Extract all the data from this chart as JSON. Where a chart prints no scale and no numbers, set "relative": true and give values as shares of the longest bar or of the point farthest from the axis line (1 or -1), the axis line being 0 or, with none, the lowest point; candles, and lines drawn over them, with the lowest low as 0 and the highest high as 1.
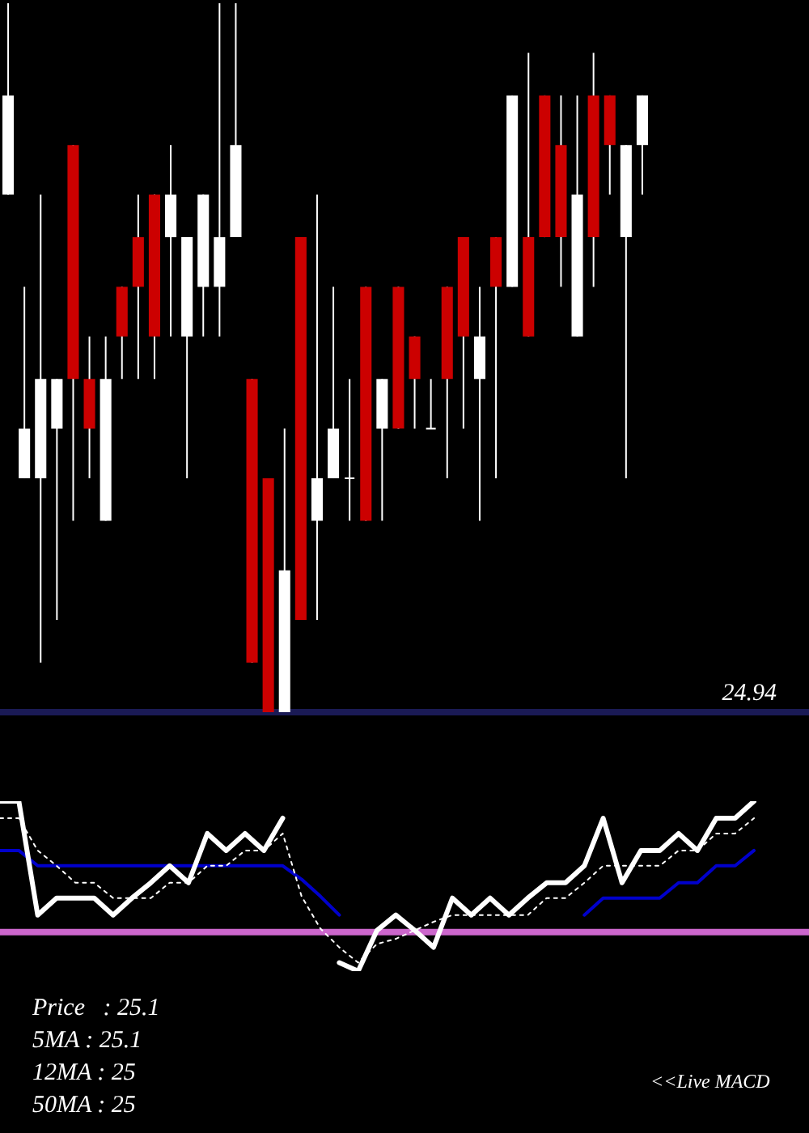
{
  "chart_data": [
    {
      "type": "candlestick",
      "relative": true,
      "legend": false,
      "annotations": [
        "24.94"
      ],
      "categories": [
        null,
        null,
        null,
        null,
        null,
        null,
        null,
        null,
        null,
        null,
        null,
        null,
        null,
        null,
        null,
        null,
        null,
        null,
        null,
        null,
        null,
        null,
        null,
        null,
        null,
        null,
        null,
        null,
        null,
        null,
        null,
        null,
        null,
        null,
        null,
        null,
        null,
        null,
        null,
        null
      ],
      "ohlc": [
        [
          0.73,
          1,
          0.73,
          0.87
        ],
        [
          0.33,
          0.6,
          0.33,
          0.4
        ],
        [
          0.33,
          0.73,
          0.07,
          0.47
        ],
        [
          0.4,
          0.47,
          0.13,
          0.47
        ],
        [
          0.8,
          0.8,
          0.27,
          0.47
        ],
        [
          0.47,
          0.53,
          0.33,
          0.4
        ],
        [
          0.27,
          0.53,
          0.27,
          0.47
        ],
        [
          0.6,
          0.6,
          0.47,
          0.53
        ],
        [
          0.67,
          0.73,
          0.47,
          0.6
        ],
        [
          0.73,
          0.73,
          0.47,
          0.53
        ],
        [
          0.67,
          0.8,
          0.53,
          0.73
        ],
        [
          0.53,
          0.67,
          0.33,
          0.67
        ],
        [
          0.6,
          0.73,
          0.53,
          0.73
        ],
        [
          0.6,
          1,
          0.53,
          0.67
        ],
        [
          0.67,
          1,
          0.67,
          0.8
        ],
        [
          0.47,
          0.47,
          0.07,
          0.07
        ],
        [
          0.33,
          0.33,
          0,
          0
        ],
        [
          0,
          0.4,
          0,
          0.2
        ],
        [
          0.67,
          0.67,
          0.13,
          0.13
        ],
        [
          0.27,
          0.73,
          0.13,
          0.33
        ],
        [
          0.33,
          0.6,
          0.33,
          0.4
        ],
        [
          0.33,
          0.47,
          0.27,
          0.33
        ],
        [
          0.6,
          0.6,
          0.27,
          0.27
        ],
        [
          0.4,
          0.47,
          0.27,
          0.47
        ],
        [
          0.6,
          0.6,
          0.4,
          0.4
        ],
        [
          0.53,
          0.53,
          0.4,
          0.47
        ],
        [
          0.4,
          0.47,
          0.4,
          0.4
        ],
        [
          0.6,
          0.6,
          0.33,
          0.47
        ],
        [
          0.67,
          0.67,
          0.4,
          0.53
        ],
        [
          0.47,
          0.6,
          0.27,
          0.53
        ],
        [
          0.67,
          0.67,
          0.33,
          0.6
        ],
        [
          0.6,
          0.87,
          0.6,
          0.87
        ],
        [
          0.67,
          0.93,
          0.53,
          0.53
        ],
        [
          0.87,
          0.87,
          0.67,
          0.67
        ],
        [
          0.8,
          0.87,
          0.6,
          0.67
        ],
        [
          0.53,
          0.87,
          0.53,
          0.73
        ],
        [
          0.87,
          0.93,
          0.6,
          0.67
        ],
        [
          0.87,
          0.87,
          0.73,
          0.8
        ],
        [
          0.67,
          0.8,
          0.33,
          0.8
        ],
        [
          0.8,
          0.87,
          0.73,
          0.87
        ]
      ],
      "colors": [
        "#ffffff",
        "#ffffff",
        "#ffffff",
        "#ffffff",
        "#cc0000",
        "#cc0000",
        "#ffffff",
        "#cc0000",
        "#cc0000",
        "#cc0000",
        "#ffffff",
        "#ffffff",
        "#ffffff",
        "#ffffff",
        "#ffffff",
        "#cc0000",
        "#cc0000",
        "#ffffff",
        "#cc0000",
        "#ffffff",
        "#ffffff",
        "#ffffff",
        "#cc0000",
        "#ffffff",
        "#cc0000",
        "#cc0000",
        "#ffffff",
        "#cc0000",
        "#cc0000",
        "#ffffff",
        "#cc0000",
        "#ffffff",
        "#cc0000",
        "#cc0000",
        "#cc0000",
        "#ffffff",
        "#cc0000",
        "#cc0000",
        "#ffffff",
        "#ffffff"
      ],
      "ref_lines": [
        {
          "axis": "y",
          "value": 0,
          "color": "#1a1a55"
        }
      ]
    },
    {
      "type": "line",
      "relative": true,
      "legend": false,
      "categories": [
        null,
        null,
        null,
        null,
        null,
        null,
        null,
        null,
        null,
        null,
        null,
        null,
        null,
        null,
        null,
        null,
        null,
        null,
        null,
        null,
        null,
        null,
        null,
        null,
        null,
        null,
        null,
        null,
        null,
        null,
        null,
        null,
        null,
        null,
        null,
        null,
        null,
        null,
        null,
        null,
        null
      ],
      "series": [
        {
          "color": "#0000cc",
          "values": [
            0.71,
            0.71,
            0.62,
            0.62,
            0.62,
            0.62,
            0.62,
            0.62,
            0.62,
            0.62,
            0.62,
            0.62,
            0.62,
            0.62,
            0.62,
            0.62,
            0.54,
            0.44,
            0.33,
            null,
            null,
            null,
            null,
            null,
            null,
            null,
            null,
            null,
            null,
            null,
            null,
            0.33,
            0.43,
            0.43,
            0.43,
            0.43,
            0.52,
            0.52,
            0.62,
            0.62,
            0.71
          ]
        },
        {
          "color": "#ffffff",
          "line_style": "dotted",
          "values": [
            0.9,
            0.9,
            0.71,
            0.62,
            0.52,
            0.52,
            0.43,
            0.43,
            0.43,
            0.52,
            0.52,
            0.62,
            0.62,
            0.71,
            0.71,
            0.81,
            0.44,
            0.25,
            0.14,
            0.05,
            0.16,
            0.19,
            0.24,
            0.29,
            0.33,
            0.33,
            0.33,
            0.33,
            0.33,
            0.43,
            0.43,
            0.52,
            0.62,
            0.62,
            0.62,
            0.62,
            0.71,
            0.71,
            0.81,
            0.81,
            0.9
          ]
        },
        {
          "color": "#ffffff",
          "values": [
            1,
            1,
            0.33,
            0.43,
            0.43,
            0.43,
            0.33,
            0.43,
            0.52,
            0.62,
            0.52,
            0.81,
            0.71,
            0.81,
            0.71,
            0.9,
            null,
            null,
            0.05,
            0,
            0.24,
            0.33,
            0.24,
            0.14,
            0.43,
            0.33,
            0.43,
            0.33,
            0.43,
            0.52,
            0.52,
            0.62,
            0.9,
            0.52,
            0.71,
            0.71,
            0.81,
            0.71,
            0.9,
            0.9,
            1
          ]
        }
      ],
      "ref_lines": [
        {
          "axis": "y",
          "value": 0.23,
          "color": "#cc66cc"
        }
      ],
      "annotations": [
        "Price   : 25.1",
        "5MA : 25.1",
        "12MA : 25",
        "50MA : 25",
        "<<Live MACD"
      ]
    }
  ]
}
